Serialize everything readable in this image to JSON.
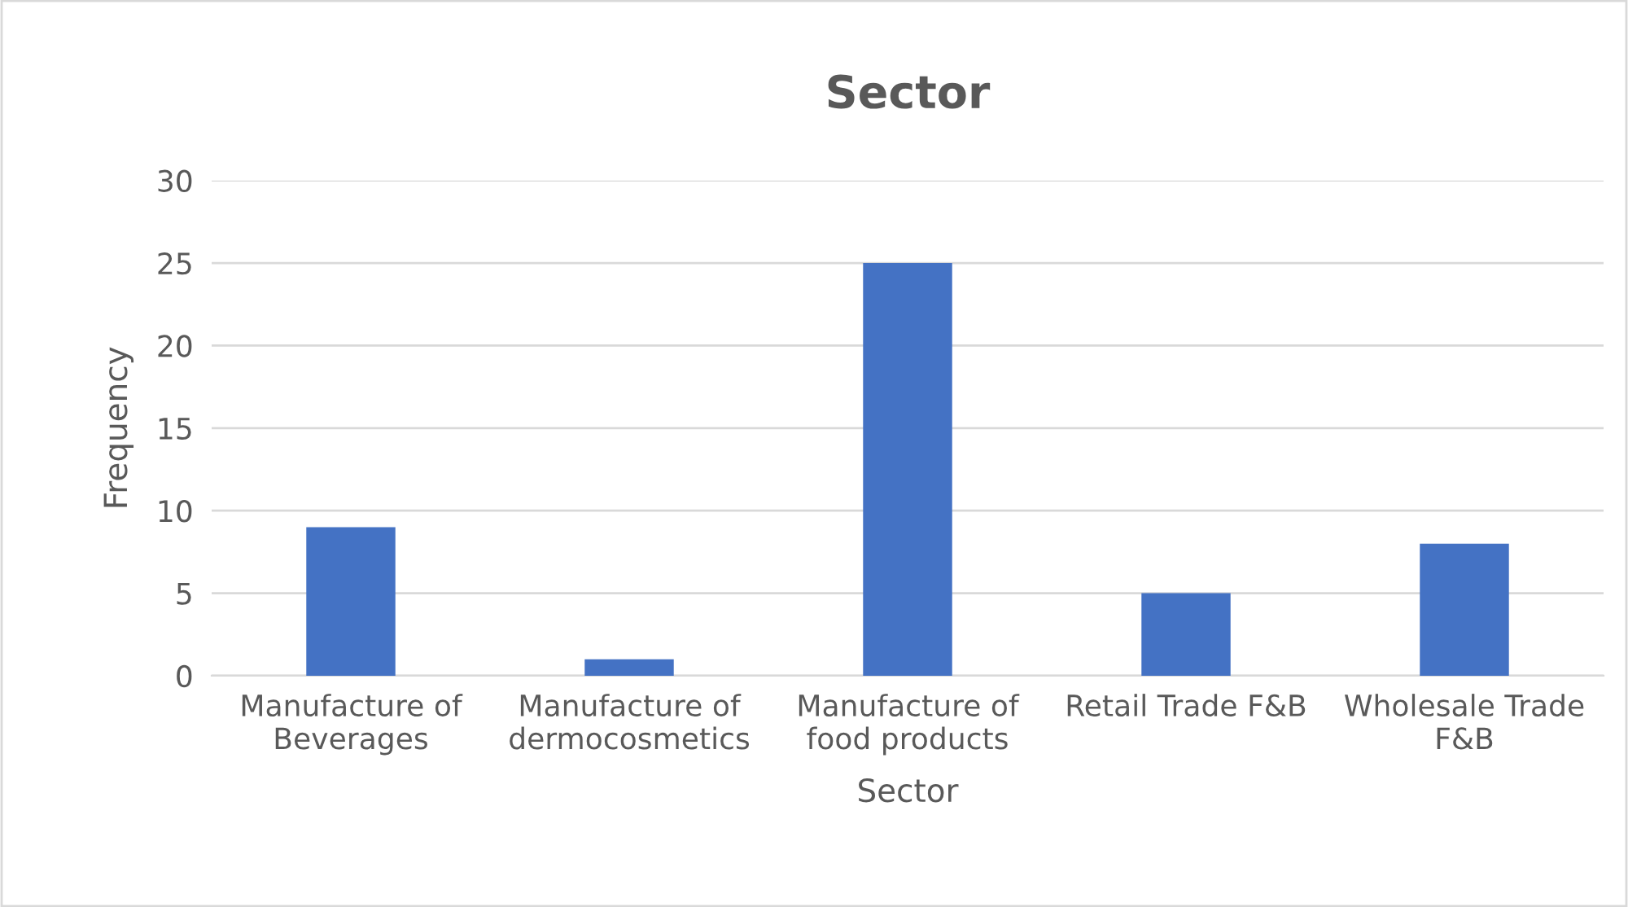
{
  "chart_data": {
    "type": "bar",
    "title": "Sector",
    "xlabel": "Sector",
    "ylabel": "Frequency",
    "categories": [
      "Manufacture of\nBeverages",
      "Manufacture of\ndermocosmetics",
      "Manufacture of\nfood products",
      "Retail Trade F&B",
      "Wholesale Trade\nF&B"
    ],
    "values": [
      9,
      1,
      25,
      5,
      8
    ],
    "color": "#4472c4",
    "ylim": [
      0,
      30
    ],
    "yticks": [
      0,
      5,
      10,
      15,
      20,
      25,
      30
    ],
    "grid": "y",
    "legend": false
  }
}
